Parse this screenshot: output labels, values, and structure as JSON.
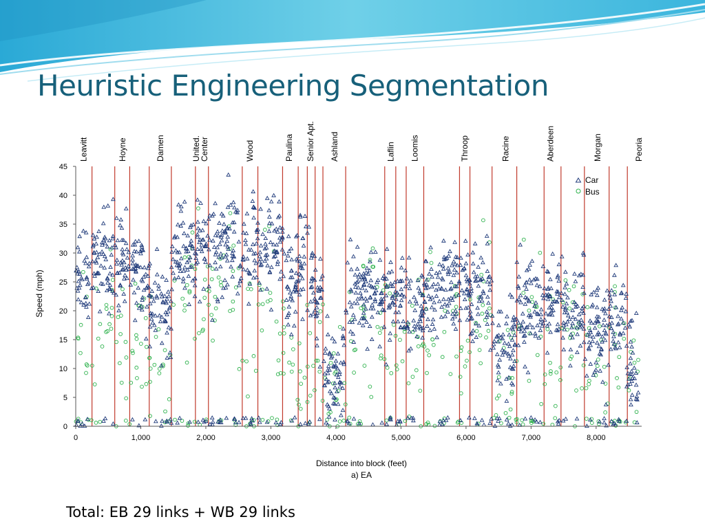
{
  "slide": {
    "title": "Heuristic Engineering Segmentation",
    "footer": "Total: EB 29 links + WB 29 links"
  },
  "colors": {
    "title": "#17607a",
    "car": "#1f3a7a",
    "bus": "#2bb14a",
    "street_line": "#c0392b"
  },
  "chart_data": {
    "type": "scatter",
    "xlabel": "Distance into block (feet)",
    "subcaption": "a) EA",
    "ylabel": "Speed (mph)",
    "xlim": [
      0,
      8700
    ],
    "ylim": [
      0,
      45
    ],
    "xticks": [
      0,
      1000,
      2000,
      3000,
      4000,
      5000,
      6000,
      7000,
      8000
    ],
    "xtick_labels": [
      "0",
      "1,000",
      "2,000",
      "3,000",
      "4,000",
      "5,000",
      "6,000",
      "7,000",
      "8,000"
    ],
    "yticks": [
      0,
      5,
      10,
      15,
      20,
      25,
      30,
      35,
      40,
      45
    ],
    "ytick_labels": [
      "0",
      "5",
      "10",
      "15",
      "20",
      "25",
      "30",
      "35",
      "40",
      "45"
    ],
    "grid": false,
    "legend_position": "top-right",
    "series": [
      {
        "name": "Car",
        "marker": "triangle",
        "segments": [
          {
            "x0": 0,
            "x1": 250,
            "mean": 25
          },
          {
            "x0": 250,
            "x1": 600,
            "mean": 29
          },
          {
            "x0": 600,
            "x1": 830,
            "mean": 29
          },
          {
            "x0": 830,
            "x1": 1130,
            "mean": 26
          },
          {
            "x0": 1130,
            "x1": 1470,
            "mean": 20
          },
          {
            "x0": 1470,
            "x1": 1840,
            "mean": 29
          },
          {
            "x0": 1840,
            "x1": 2040,
            "mean": 31
          },
          {
            "x0": 2040,
            "x1": 2560,
            "mean": 31
          },
          {
            "x0": 2560,
            "x1": 2800,
            "mean": 32
          },
          {
            "x0": 2800,
            "x1": 3180,
            "mean": 31
          },
          {
            "x0": 3180,
            "x1": 3420,
            "mean": 26
          },
          {
            "x0": 3420,
            "x1": 3560,
            "mean": 28
          },
          {
            "x0": 3560,
            "x1": 3680,
            "mean": 25
          },
          {
            "x0": 3680,
            "x1": 3800,
            "mean": 22
          },
          {
            "x0": 3800,
            "x1": 4150,
            "mean": 10
          },
          {
            "x0": 4150,
            "x1": 4750,
            "mean": 23
          },
          {
            "x0": 4750,
            "x1": 4920,
            "mean": 23
          },
          {
            "x0": 4920,
            "x1": 5080,
            "mean": 21
          },
          {
            "x0": 5080,
            "x1": 5350,
            "mean": 20
          },
          {
            "x0": 5350,
            "x1": 5900,
            "mean": 24
          },
          {
            "x0": 5900,
            "x1": 6060,
            "mean": 24
          },
          {
            "x0": 6060,
            "x1": 6400,
            "mean": 23
          },
          {
            "x0": 6400,
            "x1": 6780,
            "mean": 14
          },
          {
            "x0": 6780,
            "x1": 7200,
            "mean": 20
          },
          {
            "x0": 7200,
            "x1": 7460,
            "mean": 21
          },
          {
            "x0": 7460,
            "x1": 7820,
            "mean": 20
          },
          {
            "x0": 7820,
            "x1": 8200,
            "mean": 16
          },
          {
            "x0": 8200,
            "x1": 8480,
            "mean": 18
          },
          {
            "x0": 8480,
            "x1": 8650,
            "mean": 12
          }
        ]
      },
      {
        "name": "Bus",
        "marker": "circle",
        "segments": [
          {
            "x0": 0,
            "x1": 250,
            "mean": 12
          },
          {
            "x0": 250,
            "x1": 600,
            "mean": 20
          },
          {
            "x0": 600,
            "x1": 830,
            "mean": 12
          },
          {
            "x0": 830,
            "x1": 1130,
            "mean": 15
          },
          {
            "x0": 1130,
            "x1": 1470,
            "mean": 10
          },
          {
            "x0": 1470,
            "x1": 1840,
            "mean": 22
          },
          {
            "x0": 1840,
            "x1": 2040,
            "mean": 20
          },
          {
            "x0": 2040,
            "x1": 2560,
            "mean": 24
          },
          {
            "x0": 2560,
            "x1": 2800,
            "mean": 12
          },
          {
            "x0": 2800,
            "x1": 3180,
            "mean": 22
          },
          {
            "x0": 3180,
            "x1": 3420,
            "mean": 15
          },
          {
            "x0": 3420,
            "x1": 3560,
            "mean": 12
          },
          {
            "x0": 3560,
            "x1": 3680,
            "mean": 10
          },
          {
            "x0": 3680,
            "x1": 3800,
            "mean": 14
          },
          {
            "x0": 3800,
            "x1": 4150,
            "mean": 8
          },
          {
            "x0": 4150,
            "x1": 4750,
            "mean": 20
          },
          {
            "x0": 4750,
            "x1": 4920,
            "mean": 12
          },
          {
            "x0": 4920,
            "x1": 5080,
            "mean": 15
          },
          {
            "x0": 5080,
            "x1": 5350,
            "mean": 12
          },
          {
            "x0": 5350,
            "x1": 5900,
            "mean": 20
          },
          {
            "x0": 5900,
            "x1": 6060,
            "mean": 12
          },
          {
            "x0": 6060,
            "x1": 6400,
            "mean": 18
          },
          {
            "x0": 6400,
            "x1": 6780,
            "mean": 10
          },
          {
            "x0": 6780,
            "x1": 7200,
            "mean": 18
          },
          {
            "x0": 7200,
            "x1": 7460,
            "mean": 12
          },
          {
            "x0": 7460,
            "x1": 7820,
            "mean": 16
          },
          {
            "x0": 7820,
            "x1": 8200,
            "mean": 12
          },
          {
            "x0": 8200,
            "x1": 8480,
            "mean": 14
          },
          {
            "x0": 8480,
            "x1": 8650,
            "mean": 10
          }
        ]
      }
    ],
    "street_lines": [
      250,
      600,
      830,
      1130,
      1470,
      1840,
      2040,
      2560,
      2800,
      3180,
      3420,
      3560,
      3680,
      3800,
      4150,
      4750,
      4920,
      5080,
      5350,
      5900,
      6060,
      6400,
      6780,
      7200,
      7460,
      7820,
      8200,
      8480
    ],
    "street_labels": [
      {
        "name": "Leavitt",
        "x": 120
      },
      {
        "name": "Hoyne",
        "x": 720
      },
      {
        "name": "Damen",
        "x": 1300
      },
      {
        "name": "United.",
        "x": 1850
      },
      {
        "name": "Center",
        "x": 1980
      },
      {
        "name": "Wood",
        "x": 2680
      },
      {
        "name": "Paulina",
        "x": 3280
      },
      {
        "name": "Senior Apt.",
        "x": 3610
      },
      {
        "name": "Ashland",
        "x": 3980
      },
      {
        "name": "Laflin",
        "x": 4840
      },
      {
        "name": "Loomis",
        "x": 5210
      },
      {
        "name": "Throop",
        "x": 5980
      },
      {
        "name": "Racine",
        "x": 6610
      },
      {
        "name": "Aberdeen",
        "x": 7300
      },
      {
        "name": "Morgan",
        "x": 8020
      },
      {
        "name": "Peoria",
        "x": 8660
      }
    ]
  }
}
